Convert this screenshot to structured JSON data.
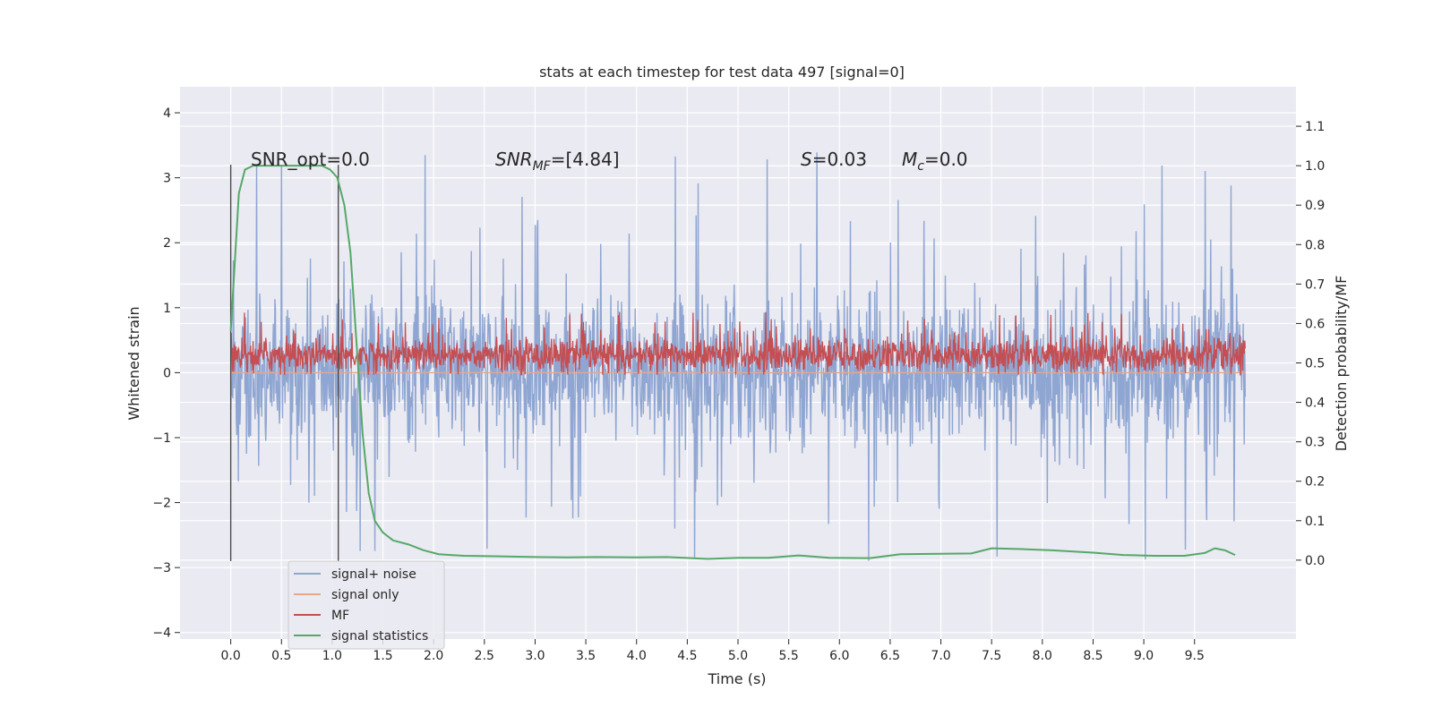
{
  "chart_data": {
    "type": "line",
    "title": "stats at each timestep for test data 497 [signal=0]",
    "xlabel": "Time (s)",
    "ylabel": "Whitened strain",
    "ylabel_right": "Detection probability/MF",
    "xlim": [
      -0.5,
      10.5
    ],
    "ylim": [
      -4.1,
      4.4
    ],
    "ylim_right": [
      -0.2,
      1.2
    ],
    "x_ticks": [
      "0.0",
      "0.5",
      "1.0",
      "1.5",
      "2.0",
      "2.5",
      "3.0",
      "3.5",
      "4.0",
      "4.5",
      "5.0",
      "5.5",
      "6.0",
      "6.5",
      "7.0",
      "7.5",
      "8.0",
      "8.5",
      "9.0",
      "9.5"
    ],
    "y_ticks": [
      "4",
      "3",
      "2",
      "1",
      "0",
      "−1",
      "−2",
      "−3",
      "−4"
    ],
    "y_ticks_right": [
      "1.1",
      "1.0",
      "0.9",
      "0.8",
      "0.7",
      "0.6",
      "0.5",
      "0.4",
      "0.3",
      "0.2",
      "0.1",
      "0.0"
    ],
    "grid": true,
    "legend_position": "lower-left",
    "annotations": {
      "snr_opt": "SNR_opt=0.0",
      "snr_mf_italic": "SNR",
      "snr_mf_sub": "MF",
      "snr_mf_value": "=[4.84]",
      "s_italic": "S",
      "s_value": "=0.03",
      "mc_italic": "M",
      "mc_sub": "c",
      "mc_value": "=0.0"
    },
    "vertical_lines_x": [
      0.0,
      1.06
    ],
    "series": [
      {
        "name": "signal+ noise",
        "color": "#8fa6d2",
        "kind": "noise",
        "x_range": [
          0.0,
          10.0
        ],
        "band": [
          -1.0,
          1.05
        ],
        "spike_range": [
          -2.9,
          3.4
        ]
      },
      {
        "name": "signal only",
        "color": "#e8a68a",
        "kind": "flat",
        "x_range": [
          0.0,
          10.0
        ],
        "y": 0.0
      },
      {
        "name": "MF",
        "color": "#c44e52",
        "kind": "noise",
        "axis": "right",
        "x_range": [
          0.0,
          10.0
        ],
        "band": [
          0.48,
          0.56
        ],
        "spike_range": [
          0.47,
          0.63
        ]
      },
      {
        "name": "signal statistics",
        "color": "#55a868",
        "axis": "right",
        "x": [
          0.0,
          0.08,
          0.14,
          0.22,
          0.3,
          0.5,
          0.7,
          0.9,
          0.98,
          1.05,
          1.12,
          1.18,
          1.24,
          1.3,
          1.36,
          1.42,
          1.5,
          1.6,
          1.75,
          1.9,
          2.05,
          2.3,
          2.6,
          3.0,
          3.3,
          3.6,
          4.0,
          4.3,
          4.7,
          5.0,
          5.3,
          5.6,
          5.9,
          6.3,
          6.6,
          7.0,
          7.3,
          7.5,
          7.8,
          8.1,
          8.5,
          8.8,
          9.1,
          9.4,
          9.6,
          9.7,
          9.8,
          9.9
        ],
        "y": [
          0.58,
          0.93,
          0.99,
          1.0,
          1.0,
          1.0,
          1.0,
          1.0,
          0.99,
          0.97,
          0.9,
          0.78,
          0.55,
          0.32,
          0.17,
          0.1,
          0.07,
          0.05,
          0.04,
          0.025,
          0.015,
          0.011,
          0.01,
          0.008,
          0.007,
          0.008,
          0.007,
          0.008,
          0.003,
          0.006,
          0.006,
          0.012,
          0.006,
          0.005,
          0.015,
          0.016,
          0.017,
          0.03,
          0.028,
          0.025,
          0.019,
          0.013,
          0.011,
          0.011,
          0.018,
          0.03,
          0.025,
          0.013
        ]
      }
    ]
  }
}
